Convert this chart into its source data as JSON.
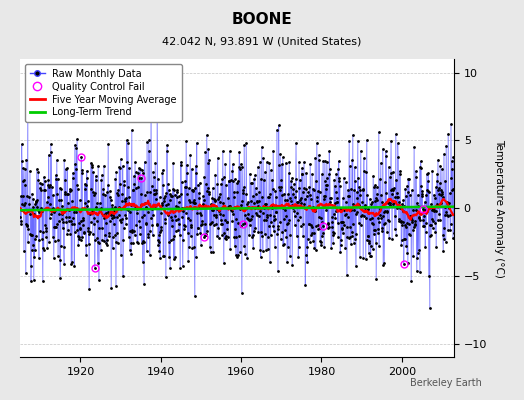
{
  "title": "BOONE",
  "subtitle": "42.042 N, 93.891 W (United States)",
  "ylabel": "Temperature Anomaly (°C)",
  "watermark": "Berkeley Earth",
  "xlim": [
    1905,
    2013
  ],
  "ylim": [
    -11,
    11
  ],
  "yticks": [
    -10,
    -5,
    0,
    5,
    10
  ],
  "xticks": [
    1920,
    1940,
    1960,
    1980,
    2000
  ],
  "line_color": "#4444ff",
  "marker_color": "#000000",
  "qc_color": "#ff00ff",
  "moving_avg_color": "#ff0000",
  "trend_color": "#00cc00",
  "bg_color": "#e8e8e8",
  "plot_bg_color": "#ffffff",
  "seed": 12345,
  "n_years": 108,
  "start_year": 1905
}
